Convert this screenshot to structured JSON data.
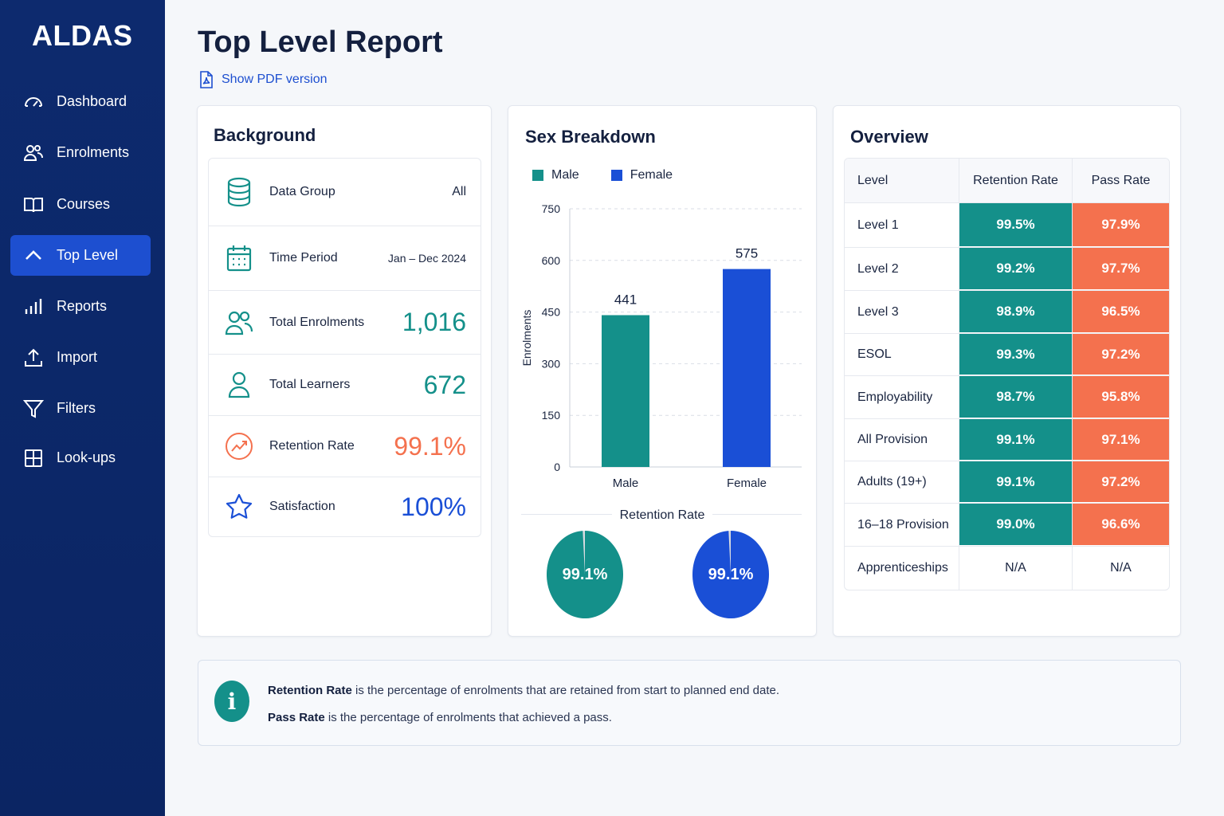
{
  "app": {
    "name": "ALDAS"
  },
  "sidebar": {
    "items": [
      {
        "label": "Dashboard",
        "icon": "dashboard-icon"
      },
      {
        "label": "Enrolments",
        "icon": "users-icon"
      },
      {
        "label": "Courses",
        "icon": "book-icon"
      },
      {
        "label": "Top Level",
        "icon": "chevron-up-icon",
        "active": true
      },
      {
        "label": "Reports",
        "icon": "bar-chart-icon"
      },
      {
        "label": "Import",
        "icon": "upload-icon"
      },
      {
        "label": "Filters",
        "icon": "filter-icon"
      },
      {
        "label": "Look-ups",
        "icon": "grid-icon"
      }
    ]
  },
  "header": {
    "title": "Top Level Report",
    "pdf_link": "Show PDF version"
  },
  "background": {
    "title": "Background",
    "rows": [
      {
        "label": "Data Group",
        "value": "All",
        "icon": "database-icon"
      },
      {
        "label": "Time Period",
        "value": "Jan – Dec 2024",
        "icon": "calendar-icon"
      },
      {
        "label": "Total Enrolments",
        "value": "1,016",
        "icon": "users-icon"
      },
      {
        "label": "Total Learners",
        "value": "672",
        "icon": "user-icon"
      },
      {
        "label": "Retention Rate",
        "value": "99.1%",
        "icon": "trend-up-icon"
      },
      {
        "label": "Satisfaction",
        "value": "100%",
        "icon": "star-icon"
      }
    ]
  },
  "colors": {
    "teal": "#14908a",
    "blue": "#1a4fd6",
    "coral": "#f4714e",
    "navy": "#0d2a6e"
  },
  "sex_breakdown": {
    "title": "Sex Breakdown",
    "legend": [
      "Male",
      "Female"
    ],
    "retention_label": "Retention Rate",
    "pies": [
      {
        "label": "99.1%",
        "value": 99.1
      },
      {
        "label": "99.1%",
        "value": 99.1
      }
    ]
  },
  "chart_data": {
    "type": "bar",
    "title": "Sex Breakdown",
    "categories": [
      "Male",
      "Female"
    ],
    "values": [
      441,
      575
    ],
    "value_labels": [
      "441",
      "575"
    ],
    "ylabel": "Enrolments",
    "xlabel": "",
    "ylim": [
      0,
      750
    ],
    "yticks": [
      0,
      150,
      300,
      450,
      600,
      750
    ],
    "ytick_labels": [
      "0",
      "150",
      "300",
      "450",
      "600",
      "750"
    ],
    "grid": true,
    "legend_position": "top-left"
  },
  "overview": {
    "title": "Overview",
    "headers": [
      "Level",
      "Retention Rate",
      "Pass Rate"
    ],
    "rows": [
      {
        "level": "Level 1",
        "retention": "99.5%",
        "pass": "97.9%"
      },
      {
        "level": "Level 2",
        "retention": "99.2%",
        "pass": "97.7%"
      },
      {
        "level": "Level 3",
        "retention": "98.9%",
        "pass": "96.5%"
      },
      {
        "level": "ESOL",
        "retention": "99.3%",
        "pass": "97.2%"
      },
      {
        "level": "Employability",
        "retention": "98.7%",
        "pass": "95.8%"
      },
      {
        "level": "All Provision",
        "retention": "99.1%",
        "pass": "97.1%"
      },
      {
        "level": "Adults (19+)",
        "retention": "99.1%",
        "pass": "97.2%"
      },
      {
        "level": "16–18 Provision",
        "retention": "99.0%",
        "pass": "96.6%"
      },
      {
        "level": "Apprenticeships",
        "retention": "N/A",
        "pass": "N/A"
      }
    ]
  },
  "info": {
    "retention_term": "Retention Rate",
    "retention_text": " is the percentage of enrolments that are retained from start to planned end date.",
    "pass_term": "Pass Rate",
    "pass_text": " is the percentage of enrolments that achieved a pass."
  }
}
